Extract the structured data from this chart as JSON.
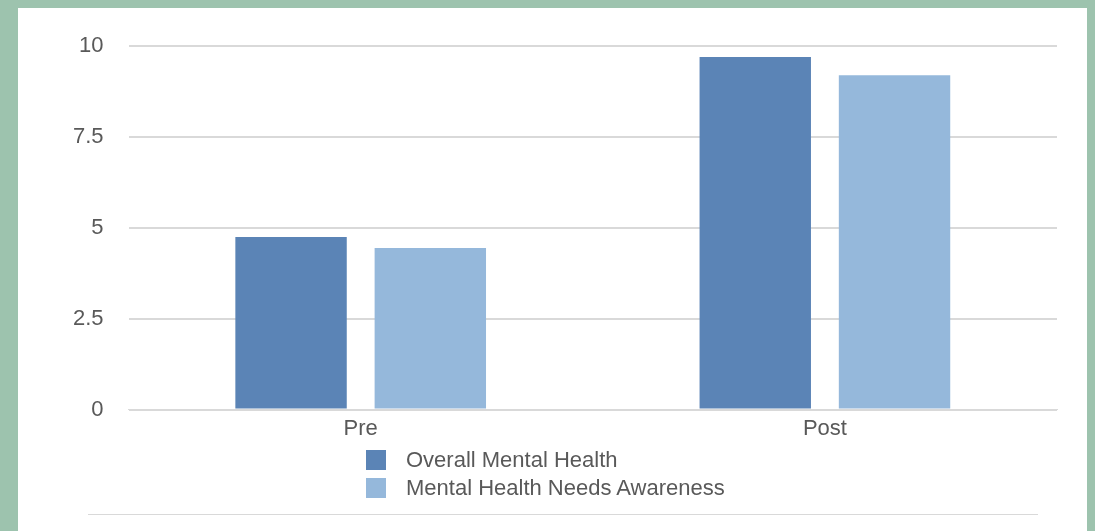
{
  "chart_data": {
    "type": "bar",
    "categories": [
      "Pre",
      "Post"
    ],
    "series": [
      {
        "name": "Overall Mental Health",
        "color": "#5b84b6",
        "values": [
          4.75,
          9.7
        ]
      },
      {
        "name": "Mental Health Needs Awareness",
        "color": "#95b8db",
        "values": [
          4.45,
          9.2
        ]
      }
    ],
    "ylim": [
      0,
      10
    ],
    "yticks": [
      0,
      2.5,
      5,
      7.5,
      10
    ],
    "grid": "y",
    "legend": "bottom"
  }
}
